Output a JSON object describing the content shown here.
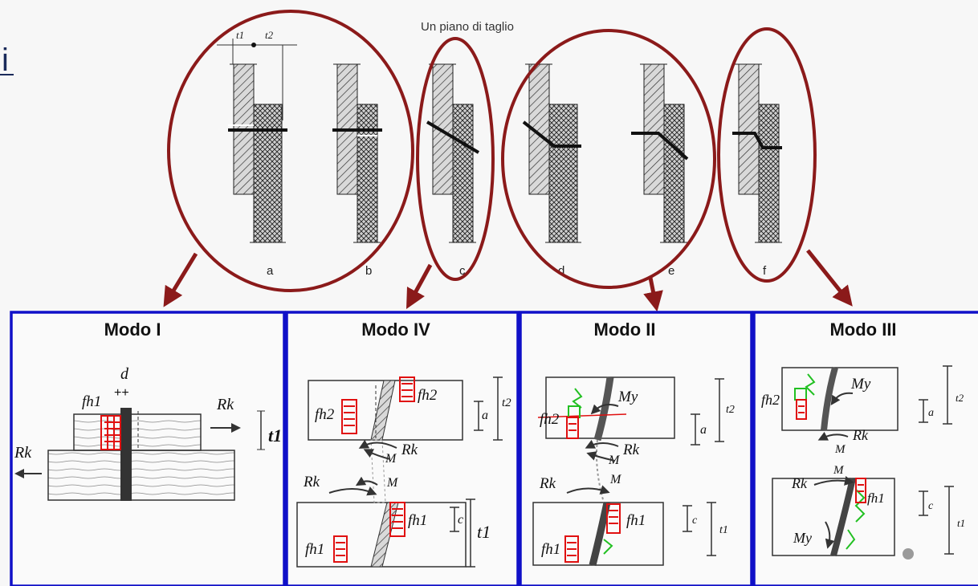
{
  "top": {
    "title": "Un piano di taglio",
    "corner_fragment": "i",
    "case_letters": [
      "a",
      "b",
      "c",
      "d",
      "e",
      "f"
    ],
    "dim_t1": "t1",
    "dim_t2": "t2"
  },
  "panels": [
    {
      "title": "Modo I"
    },
    {
      "title": "Modo IV"
    },
    {
      "title": "Modo II"
    },
    {
      "title": "Modo III"
    }
  ],
  "labels": {
    "d": "d",
    "fh1": "fh1",
    "fh2": "fh2",
    "Rk": "Rk",
    "M": "M",
    "My": "My",
    "a": "a",
    "c": "c",
    "t1": "t1",
    "t2": "t2"
  },
  "colors": {
    "ellipse": "#8b1a1a",
    "arrow": "#8b1a1a",
    "panel_border": "#1010c8",
    "stress_red": "#e01010",
    "stress_green": "#22c022"
  }
}
